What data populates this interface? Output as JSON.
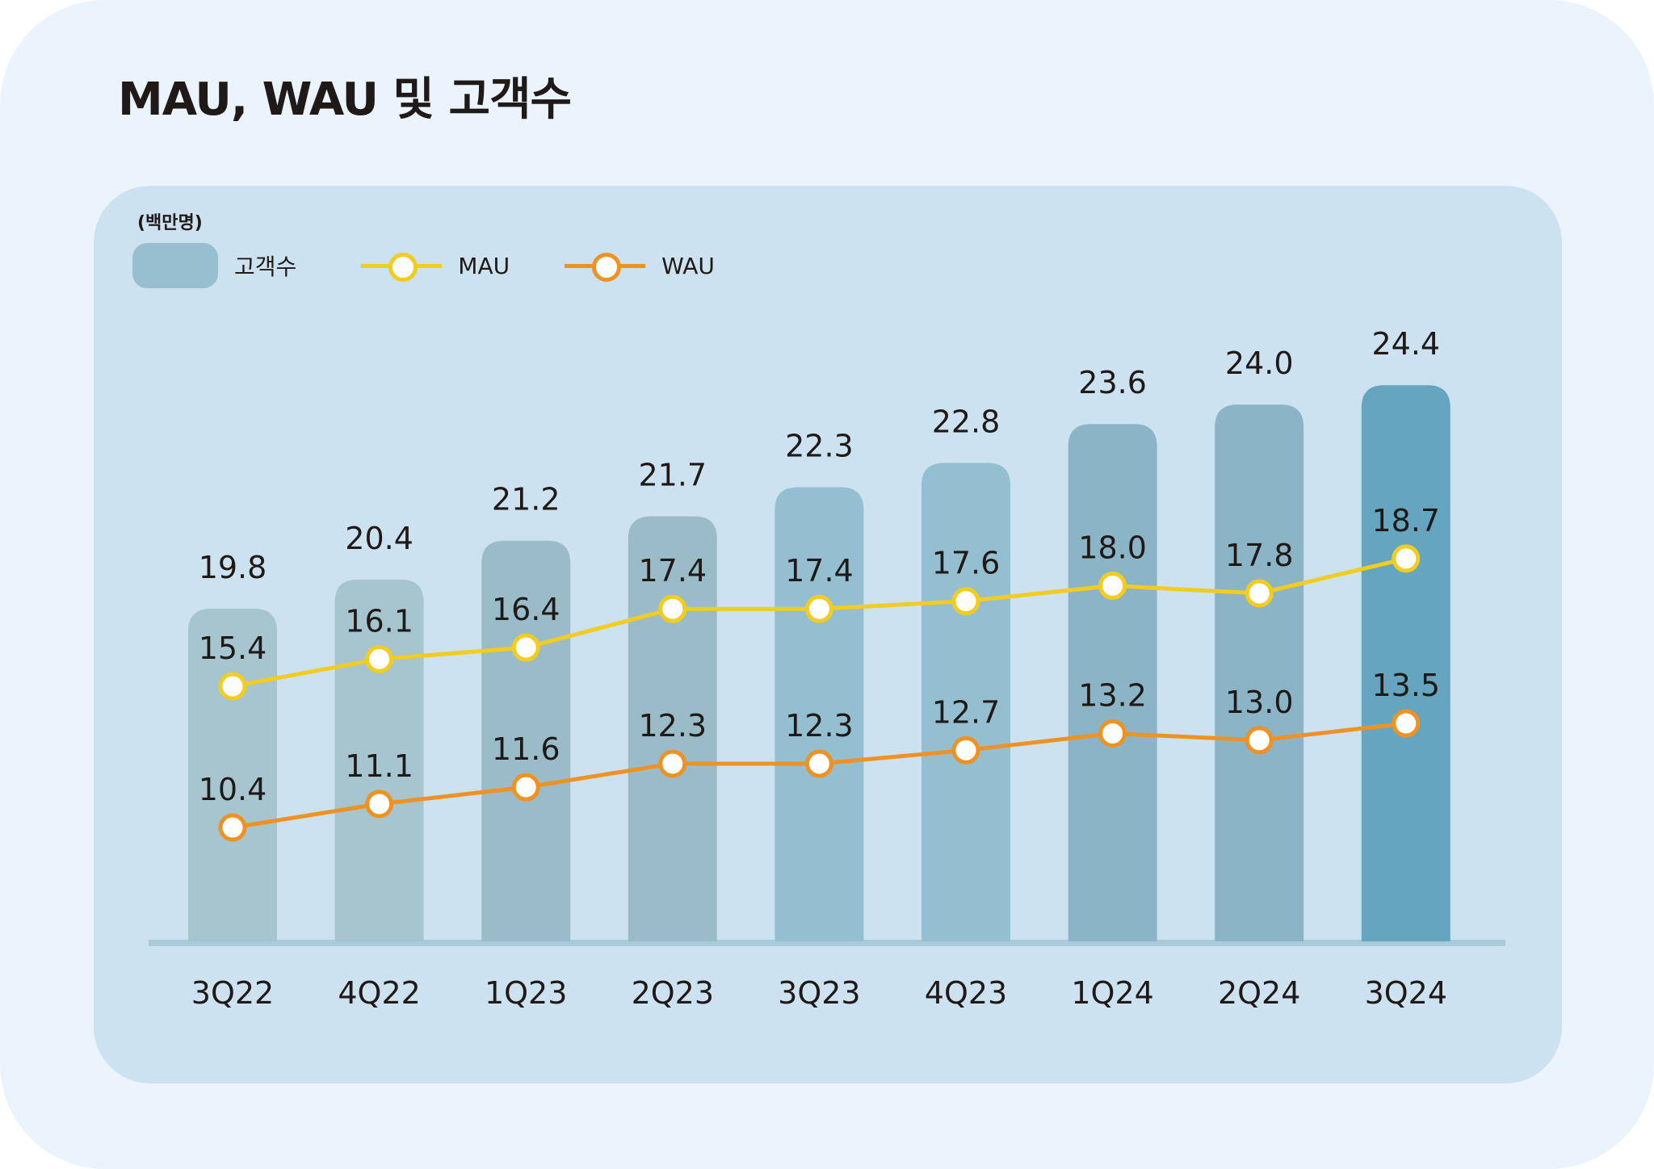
{
  "title": "MAU, WAU 및 고객수",
  "unit_label": "(백만명)",
  "legend": [
    {
      "label": "고객수",
      "kind": "bar",
      "color": "#97BFCF"
    },
    {
      "label": "MAU",
      "kind": "line",
      "color": "#F2CC1E"
    },
    {
      "label": "WAU",
      "kind": "line",
      "color": "#EE9223"
    }
  ],
  "colors": {
    "page_background": "#EBF3FC",
    "panel_background": "#CDE2F0",
    "baseline": "#A9CAD8",
    "bar_colors": [
      "#A6C5CF",
      "#A6C5CF",
      "#9ABCC8",
      "#9ABCC8",
      "#94BFD1",
      "#94BFD1",
      "#8BB5C6",
      "#8BB5C6",
      "#66A5BF"
    ],
    "mau_line": "#F2CC1E",
    "wau_line": "#EE9223",
    "marker_fill": "#FFFFFF",
    "text": "#1F1A17"
  },
  "chart_data": {
    "type": "bar",
    "title": "MAU, WAU 및 고객수",
    "unit": "(백만명)",
    "xlabel": "",
    "ylabel": "",
    "grid": false,
    "legend_position": "top-left",
    "categories": [
      "3Q22",
      "4Q22",
      "1Q23",
      "2Q23",
      "3Q23",
      "4Q23",
      "1Q24",
      "2Q24",
      "3Q24"
    ],
    "series": [
      {
        "name": "고객수",
        "type": "bar",
        "values": [
          19.8,
          20.4,
          21.2,
          21.7,
          22.3,
          22.8,
          23.6,
          24.0,
          24.4
        ]
      },
      {
        "name": "MAU",
        "type": "line",
        "values": [
          15.4,
          16.1,
          16.4,
          17.4,
          17.4,
          17.6,
          18.0,
          17.8,
          18.7
        ]
      },
      {
        "name": "WAU",
        "type": "line",
        "values": [
          10.4,
          11.1,
          11.6,
          12.3,
          12.3,
          12.7,
          13.2,
          13.0,
          13.5
        ]
      }
    ]
  }
}
